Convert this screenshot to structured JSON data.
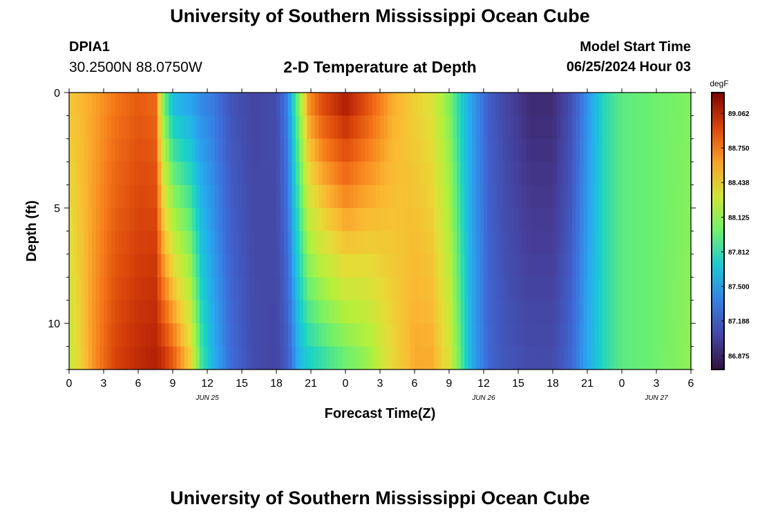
{
  "header": {
    "title": "University of Southern Mississippi Ocean Cube",
    "station_id": "DPIA1",
    "coordinates": "30.2500N  88.0750W",
    "subtitle": "2-D Temperature at Depth",
    "model_start_label": "Model Start Time",
    "model_start_value": "06/25/2024 Hour 03"
  },
  "footer": {
    "title": "University of Southern Mississippi Ocean Cube"
  },
  "chart_data": {
    "type": "heatmap",
    "title": "2-D Temperature at Depth",
    "xlabel": "Forecast Time(Z)",
    "ylabel": "Depth (ft)",
    "xlim": [
      0,
      54
    ],
    "ylim": [
      12,
      0
    ],
    "y_reversed": true,
    "x_ticks": [
      0,
      3,
      6,
      9,
      12,
      15,
      18,
      21,
      24,
      27,
      30,
      33,
      36,
      39,
      42,
      45,
      48,
      51,
      54
    ],
    "x_tick_labels": [
      "0",
      "3",
      "6",
      "9",
      "12",
      "15",
      "18",
      "21",
      "0",
      "3",
      "6",
      "9",
      "12",
      "15",
      "18",
      "21",
      "0",
      "3",
      "6"
    ],
    "y_ticks": [
      0,
      5,
      10
    ],
    "y_tick_labels": [
      "0",
      "5",
      "10"
    ],
    "date_labels": [
      {
        "x": 12,
        "label": "JUN 25"
      },
      {
        "x": 36,
        "label": "JUN 26"
      },
      {
        "x": 51,
        "label": "JUN 27"
      }
    ],
    "colorbar": {
      "unit": "degF",
      "min": 86.75,
      "max": 89.25,
      "ticks": [
        86.875,
        87.188,
        87.5,
        87.812,
        88.125,
        88.438,
        88.75,
        89.062
      ],
      "tick_labels": [
        "86.875",
        "87.188",
        "87.500",
        "87.812",
        "88.125",
        "88.438",
        "88.750",
        "89.062"
      ]
    },
    "depth_levels": [
      0,
      1,
      2,
      3,
      4,
      5,
      6,
      7,
      8,
      9,
      10,
      11,
      12
    ],
    "time_profile": [
      {
        "t": 0,
        "top": 88.5,
        "bottom": 88.25
      },
      {
        "t": 2,
        "top": 88.6,
        "bottom": 88.65
      },
      {
        "t": 4,
        "top": 88.75,
        "bottom": 88.95
      },
      {
        "t": 6,
        "top": 88.85,
        "bottom": 89.05
      },
      {
        "t": 7.5,
        "top": 88.8,
        "bottom": 89.1
      },
      {
        "t": 8.2,
        "top": 88.0,
        "bottom": 89.05
      },
      {
        "t": 9,
        "top": 87.6,
        "bottom": 88.9
      },
      {
        "t": 10.5,
        "top": 87.5,
        "bottom": 88.5
      },
      {
        "t": 11.5,
        "top": 87.4,
        "bottom": 87.9
      },
      {
        "t": 12.5,
        "top": 87.35,
        "bottom": 87.6
      },
      {
        "t": 14,
        "top": 87.15,
        "bottom": 87.3
      },
      {
        "t": 16,
        "top": 87.05,
        "bottom": 87.1
      },
      {
        "t": 18,
        "top": 87.1,
        "bottom": 87.05
      },
      {
        "t": 19,
        "top": 87.4,
        "bottom": 87.2
      },
      {
        "t": 19.5,
        "top": 87.8,
        "bottom": 87.4
      },
      {
        "t": 20,
        "top": 88.1,
        "bottom": 87.6
      },
      {
        "t": 20.8,
        "top": 88.7,
        "bottom": 87.7
      },
      {
        "t": 22,
        "top": 88.95,
        "bottom": 87.8
      },
      {
        "t": 24,
        "top": 89.15,
        "bottom": 87.95
      },
      {
        "t": 26,
        "top": 88.9,
        "bottom": 88.1
      },
      {
        "t": 28,
        "top": 88.6,
        "bottom": 88.4
      },
      {
        "t": 30,
        "top": 88.45,
        "bottom": 88.6
      },
      {
        "t": 31.5,
        "top": 88.35,
        "bottom": 88.6
      },
      {
        "t": 33,
        "top": 88.05,
        "bottom": 88.35
      },
      {
        "t": 34,
        "top": 87.75,
        "bottom": 87.95
      },
      {
        "t": 35,
        "top": 87.5,
        "bottom": 87.55
      },
      {
        "t": 36.5,
        "top": 87.2,
        "bottom": 87.25
      },
      {
        "t": 38,
        "top": 87.05,
        "bottom": 87.15
      },
      {
        "t": 40,
        "top": 86.9,
        "bottom": 87.1
      },
      {
        "t": 42,
        "top": 86.9,
        "bottom": 87.1
      },
      {
        "t": 43.5,
        "top": 87.1,
        "bottom": 87.25
      },
      {
        "t": 45,
        "top": 87.45,
        "bottom": 87.55
      },
      {
        "t": 46.5,
        "top": 87.8,
        "bottom": 87.8
      },
      {
        "t": 48,
        "top": 87.95,
        "bottom": 87.95
      },
      {
        "t": 51,
        "top": 88.0,
        "bottom": 88.0
      },
      {
        "t": 54,
        "top": 88.05,
        "bottom": 88.1
      }
    ]
  }
}
